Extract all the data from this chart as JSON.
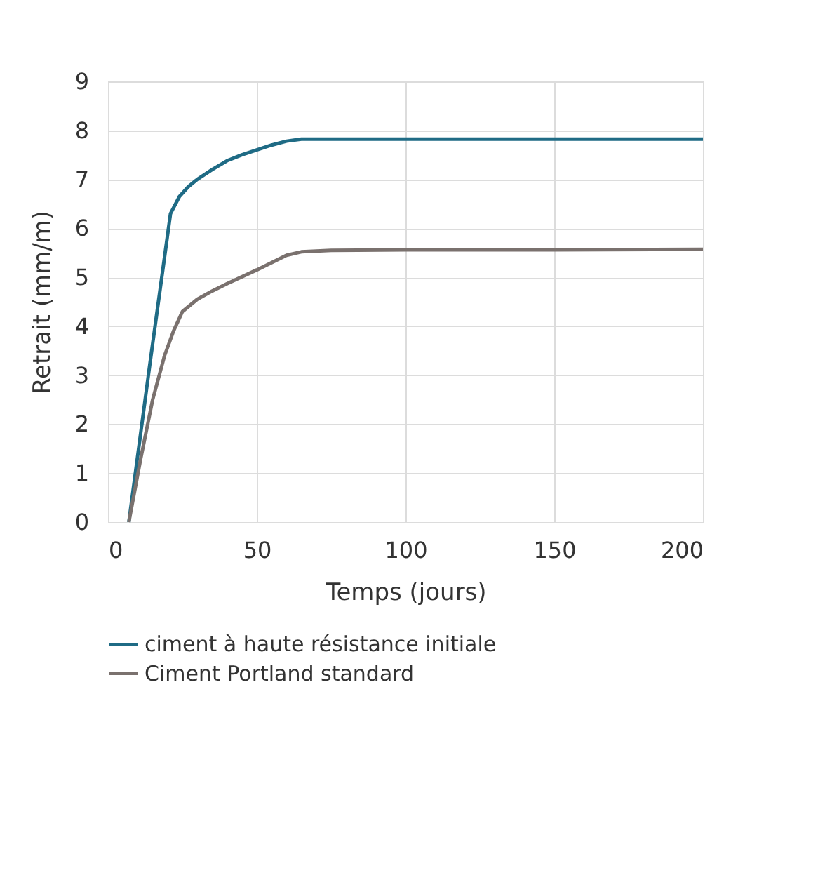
{
  "chart_data": {
    "type": "line",
    "xlabel": "Temps (jours)",
    "ylabel": "Retrait (mm/m)",
    "series": [
      {
        "name": "ciment à haute résistance initiale",
        "color": "#1f6b85",
        "x": [
          7,
          14,
          21,
          24,
          27,
          30,
          35,
          40,
          45,
          50,
          55,
          60,
          65,
          100,
          150,
          200
        ],
        "values": [
          0,
          3.2,
          6.3,
          6.65,
          6.85,
          7.0,
          7.2,
          7.38,
          7.5,
          7.6,
          7.7,
          7.78,
          7.82,
          7.82,
          7.82,
          7.82
        ]
      },
      {
        "name": "Ciment Portland standard",
        "color": "#7a716e",
        "x": [
          7,
          11,
          15,
          19,
          22,
          25,
          30,
          35,
          40,
          50,
          60,
          65,
          75,
          100,
          150,
          200
        ],
        "values": [
          0,
          1.3,
          2.5,
          3.4,
          3.9,
          4.3,
          4.55,
          4.72,
          4.87,
          5.15,
          5.45,
          5.52,
          5.55,
          5.56,
          5.56,
          5.57
        ]
      }
    ],
    "xlim": [
      0,
      200
    ],
    "xticks": [
      0,
      50,
      100,
      150,
      200
    ],
    "ylim": [
      0,
      9
    ],
    "yticks": [
      0,
      1,
      2,
      3,
      4,
      5,
      6,
      7,
      8,
      9
    ],
    "grid": true,
    "legend": "bottom",
    "marker": "none",
    "line_style": "solid"
  }
}
